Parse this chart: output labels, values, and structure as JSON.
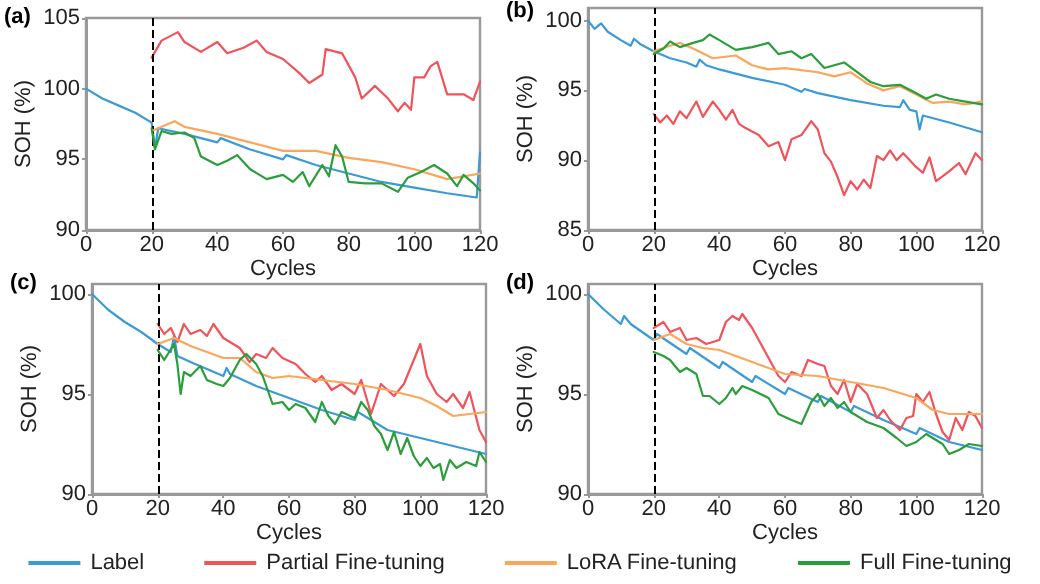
{
  "chart_data": [
    {
      "type": "line",
      "annotations": [
        "(a)"
      ],
      "xlabel": "Cycles",
      "ylabel": "SOH (%)",
      "xlim": [
        0,
        120
      ],
      "xticks": [
        0,
        20,
        40,
        60,
        80,
        100,
        120
      ],
      "ylim": [
        90,
        105
      ],
      "yticks": [
        90,
        95,
        100,
        105
      ],
      "grid": false,
      "legend": "bottom",
      "marker": "none",
      "line_style": "solid",
      "ref_lines": [
        {
          "axis": "x",
          "value": 20,
          "color": "#000000",
          "line_style": "dashed"
        }
      ],
      "series": [
        {
          "name": "Label",
          "color": "#3c9ad6",
          "x": [
            0,
            5,
            10,
            15,
            20,
            21,
            22,
            30,
            40,
            41,
            50,
            60,
            61,
            70,
            80,
            90,
            100,
            110,
            119,
            120
          ],
          "values": [
            100,
            99.3,
            98.8,
            98.3,
            97.6,
            95.8,
            97.2,
            96.8,
            96.2,
            96.5,
            95.7,
            95.0,
            95.3,
            94.6,
            94.0,
            93.4,
            93.0,
            92.6,
            92.3,
            95.5
          ]
        },
        {
          "name": "Partial Fine-tuning",
          "color": "#f0535a",
          "x": [
            20,
            23,
            28,
            30,
            35,
            40,
            43,
            48,
            52,
            55,
            60,
            65,
            68,
            72,
            73,
            78,
            82,
            84,
            88,
            92,
            95,
            97,
            99,
            100,
            103,
            105,
            107,
            110,
            115,
            118,
            120
          ],
          "values": [
            102.2,
            103.4,
            104.0,
            103.3,
            102.6,
            103.3,
            102.5,
            102.9,
            103.4,
            102.6,
            102.1,
            101.1,
            100.4,
            101.0,
            102.8,
            102.5,
            100.8,
            99.3,
            100.2,
            99.3,
            98.4,
            99.0,
            98.5,
            100.8,
            100.8,
            101.6,
            101.9,
            99.6,
            99.6,
            99.2,
            100.5
          ]
        },
        {
          "name": "LoRA Fine-tuning",
          "color": "#fba65a",
          "x": [
            20,
            25,
            27,
            30,
            40,
            50,
            60,
            70,
            80,
            90,
            100,
            110,
            115,
            120
          ],
          "values": [
            97.0,
            97.5,
            97.7,
            97.3,
            96.8,
            96.2,
            95.6,
            95.6,
            95.1,
            94.8,
            94.3,
            93.6,
            93.8,
            94.0
          ]
        },
        {
          "name": "Full Fine-tuning",
          "color": "#2a9e3a",
          "x": [
            20,
            21,
            23,
            26,
            30,
            33,
            35,
            40,
            43,
            46,
            50,
            55,
            60,
            63,
            66,
            68,
            72,
            74,
            76,
            78,
            80,
            85,
            90,
            95,
            98,
            102,
            106,
            110,
            113,
            115,
            118,
            120
          ],
          "values": [
            97.2,
            95.7,
            97.0,
            96.8,
            96.9,
            96.5,
            95.2,
            94.6,
            94.9,
            95.3,
            94.3,
            93.6,
            93.9,
            93.4,
            94.1,
            93.1,
            94.6,
            93.8,
            96.0,
            95.2,
            93.4,
            93.3,
            93.3,
            92.7,
            93.7,
            94.1,
            94.6,
            94.0,
            93.1,
            93.9,
            93.3,
            92.8
          ]
        }
      ]
    },
    {
      "type": "line",
      "annotations": [
        "(b)"
      ],
      "xlabel": "Cycles",
      "ylabel": "SOH (%)",
      "xlim": [
        0,
        120
      ],
      "xticks": [
        0,
        20,
        40,
        60,
        80,
        100,
        120
      ],
      "ylim": [
        85,
        100.9
      ],
      "yticks": [
        85,
        90,
        95,
        100
      ],
      "grid": false,
      "marker": "none",
      "line_style": "solid",
      "ref_lines": [
        {
          "axis": "x",
          "value": 20,
          "color": "#000000",
          "line_style": "dashed"
        }
      ],
      "series": [
        {
          "color": "#3c9ad6",
          "x": [
            0,
            2,
            4,
            6,
            10,
            13,
            14,
            16,
            20,
            25,
            30,
            33,
            34,
            36,
            40,
            50,
            60,
            65,
            66,
            70,
            80,
            90,
            95,
            96,
            98,
            100,
            101,
            102,
            110,
            120
          ],
          "values": [
            100.0,
            99.4,
            99.8,
            99.2,
            98.6,
            98.2,
            98.7,
            98.3,
            97.8,
            97.3,
            97.0,
            96.7,
            97.2,
            96.8,
            96.5,
            95.9,
            95.4,
            94.9,
            95.1,
            94.8,
            94.3,
            93.9,
            93.8,
            94.3,
            93.6,
            93.5,
            92.2,
            93.2,
            92.7,
            92.0
          ]
        },
        {
          "color": "#f0535a",
          "x": [
            20,
            22,
            24,
            26,
            28,
            30,
            33,
            35,
            38,
            40,
            42,
            44,
            46,
            48,
            52,
            55,
            58,
            60,
            62,
            65,
            68,
            70,
            72,
            74,
            76,
            78,
            80,
            82,
            84,
            86,
            88,
            90,
            92,
            94,
            96,
            100,
            102,
            104,
            106,
            110,
            113,
            115,
            118,
            120
          ],
          "values": [
            93.3,
            92.7,
            93.2,
            92.6,
            93.5,
            93.0,
            94.2,
            93.1,
            94.2,
            93.6,
            92.9,
            93.6,
            92.6,
            92.3,
            91.8,
            91.0,
            91.3,
            90.0,
            91.5,
            91.8,
            92.8,
            92.2,
            90.5,
            89.9,
            88.8,
            87.5,
            88.5,
            87.9,
            88.6,
            88.0,
            90.3,
            90.0,
            90.7,
            90.0,
            90.5,
            89.5,
            89.1,
            90.2,
            88.5,
            89.2,
            89.8,
            89.0,
            90.5,
            90.0
          ]
        },
        {
          "color": "#fba65a",
          "x": [
            20,
            25,
            28,
            32,
            38,
            45,
            50,
            55,
            60,
            70,
            75,
            80,
            85,
            90,
            95,
            100,
            105,
            110,
            115,
            120
          ],
          "values": [
            97.8,
            98.2,
            98.4,
            98.0,
            97.3,
            97.5,
            96.8,
            96.5,
            96.6,
            96.3,
            96.0,
            96.3,
            95.5,
            95.0,
            95.3,
            94.7,
            94.1,
            94.2,
            94.0,
            94.2
          ]
        },
        {
          "color": "#2a9e3a",
          "x": [
            20,
            23,
            25,
            28,
            32,
            35,
            37,
            40,
            45,
            50,
            55,
            58,
            62,
            65,
            68,
            72,
            78,
            82,
            86,
            90,
            95,
            100,
            103,
            106,
            110,
            115,
            120
          ],
          "values": [
            97.6,
            98.0,
            98.5,
            98.1,
            98.4,
            98.6,
            99.0,
            98.6,
            97.9,
            98.1,
            98.4,
            97.6,
            97.8,
            97.3,
            97.6,
            96.6,
            97.0,
            96.3,
            95.6,
            95.3,
            95.4,
            94.8,
            94.4,
            94.7,
            94.4,
            94.2,
            94.0
          ]
        }
      ]
    },
    {
      "type": "line",
      "annotations": [
        "(c)"
      ],
      "xlabel": "Cycles",
      "ylabel": "SOH (%)",
      "xlim": [
        0,
        120
      ],
      "xticks": [
        0,
        20,
        40,
        60,
        80,
        100,
        120
      ],
      "ylim": [
        90,
        100.5
      ],
      "yticks": [
        90,
        95,
        100
      ],
      "grid": false,
      "marker": "none",
      "line_style": "solid",
      "ref_lines": [
        {
          "axis": "x",
          "value": 20,
          "color": "#000000",
          "line_style": "dashed"
        }
      ],
      "series": [
        {
          "color": "#3c9ad6",
          "x": [
            0,
            5,
            10,
            15,
            20,
            24,
            25,
            26,
            30,
            40,
            41,
            42,
            50,
            60,
            70,
            80,
            81,
            90,
            100,
            110,
            120
          ],
          "values": [
            100,
            99.2,
            98.6,
            98.1,
            97.5,
            97.1,
            97.9,
            96.9,
            96.6,
            95.9,
            96.3,
            96.0,
            95.4,
            94.8,
            94.2,
            93.7,
            94.1,
            93.2,
            92.8,
            92.4,
            92.0
          ]
        },
        {
          "color": "#f0535a",
          "x": [
            20,
            22,
            24,
            26,
            28,
            30,
            33,
            35,
            37,
            40,
            45,
            48,
            50,
            53,
            55,
            58,
            62,
            65,
            68,
            70,
            73,
            76,
            80,
            82,
            85,
            88,
            92,
            95,
            98,
            100,
            102,
            105,
            108,
            110,
            113,
            115,
            118,
            120
          ],
          "values": [
            98.5,
            98.0,
            98.3,
            97.6,
            98.5,
            98.0,
            98.2,
            97.9,
            98.5,
            97.8,
            97.3,
            96.6,
            97.0,
            96.8,
            97.3,
            96.8,
            96.5,
            96.0,
            95.6,
            95.9,
            95.2,
            95.5,
            95.0,
            95.7,
            94.0,
            95.5,
            94.9,
            95.5,
            96.7,
            97.5,
            95.9,
            95.0,
            94.6,
            95.0,
            94.3,
            95.1,
            93.2,
            92.6
          ]
        },
        {
          "color": "#fba65a",
          "x": [
            20,
            25,
            30,
            40,
            45,
            50,
            55,
            60,
            70,
            80,
            90,
            100,
            105,
            110,
            115,
            120
          ],
          "values": [
            97.5,
            97.8,
            97.4,
            96.8,
            96.8,
            96.1,
            95.8,
            95.9,
            95.7,
            95.5,
            95.2,
            94.8,
            94.4,
            93.9,
            94.0,
            94.1
          ]
        },
        {
          "color": "#2a9e3a",
          "x": [
            20,
            22,
            25,
            26,
            27,
            28,
            30,
            33,
            35,
            38,
            40,
            42,
            45,
            47,
            50,
            52,
            55,
            58,
            60,
            62,
            65,
            68,
            70,
            72,
            74,
            76,
            80,
            82,
            84,
            86,
            88,
            90,
            92,
            94,
            96,
            98,
            100,
            102,
            104,
            106,
            107,
            109,
            111,
            114,
            117,
            118,
            120
          ],
          "values": [
            97.2,
            96.7,
            97.5,
            96.5,
            95.0,
            96.1,
            95.9,
            96.4,
            95.7,
            95.5,
            95.4,
            95.8,
            96.7,
            97.0,
            96.5,
            95.9,
            94.5,
            94.6,
            94.2,
            94.5,
            94.3,
            93.6,
            94.6,
            93.9,
            93.5,
            94.1,
            93.8,
            94.6,
            94.2,
            93.4,
            93.0,
            92.2,
            93.1,
            92.0,
            92.8,
            91.9,
            91.4,
            91.8,
            91.3,
            91.5,
            90.7,
            91.7,
            91.3,
            91.6,
            91.4,
            92.1,
            91.6
          ]
        }
      ]
    },
    {
      "type": "line",
      "annotations": [
        "(d)"
      ],
      "xlabel": "Cycles",
      "ylabel": "SOH (%)",
      "xlim": [
        0,
        120
      ],
      "xticks": [
        0,
        20,
        40,
        60,
        80,
        100,
        120
      ],
      "ylim": [
        90,
        100.5
      ],
      "yticks": [
        90,
        95,
        100
      ],
      "grid": false,
      "marker": "none",
      "line_style": "solid",
      "ref_lines": [
        {
          "axis": "x",
          "value": 20,
          "color": "#000000",
          "line_style": "dashed"
        }
      ],
      "series": [
        {
          "color": "#3c9ad6",
          "x": [
            0,
            5,
            10,
            11,
            13,
            20,
            21,
            30,
            31,
            40,
            41,
            50,
            51,
            60,
            61,
            70,
            71,
            80,
            81,
            90,
            100,
            101,
            110,
            120
          ],
          "values": [
            100,
            99.2,
            98.5,
            98.9,
            98.5,
            97.7,
            98.0,
            97.0,
            97.3,
            96.3,
            96.6,
            95.6,
            95.9,
            95.0,
            95.3,
            94.6,
            94.9,
            94.1,
            94.4,
            93.7,
            93.0,
            93.3,
            92.6,
            92.2
          ]
        },
        {
          "color": "#f0535a",
          "x": [
            20,
            23,
            25,
            28,
            30,
            33,
            36,
            40,
            42,
            44,
            46,
            47,
            50,
            52,
            55,
            58,
            60,
            62,
            65,
            67,
            70,
            72,
            74,
            76,
            78,
            80,
            82,
            85,
            88,
            90,
            92,
            95,
            97,
            99,
            100,
            102,
            104,
            106,
            108,
            110,
            112,
            114,
            116,
            118,
            120
          ],
          "values": [
            98.3,
            98.6,
            98.1,
            98.3,
            97.7,
            97.8,
            97.5,
            97.7,
            98.6,
            98.9,
            98.7,
            99.0,
            98.3,
            97.7,
            96.8,
            95.9,
            95.6,
            96.1,
            95.9,
            96.7,
            96.5,
            96.4,
            95.4,
            95.0,
            95.7,
            94.6,
            95.5,
            95.0,
            93.8,
            94.2,
            93.7,
            93.2,
            93.8,
            93.9,
            95.0,
            94.6,
            95.1,
            94.0,
            93.1,
            92.7,
            93.8,
            93.2,
            94.1,
            93.9,
            93.3
          ]
        },
        {
          "color": "#fba65a",
          "x": [
            20,
            25,
            30,
            35,
            40,
            50,
            60,
            70,
            80,
            90,
            100,
            105,
            110,
            120
          ],
          "values": [
            97.7,
            98.0,
            97.5,
            97.3,
            97.2,
            96.6,
            96.0,
            95.9,
            95.6,
            95.3,
            94.8,
            94.2,
            94.0,
            94.0
          ]
        },
        {
          "color": "#2a9e3a",
          "x": [
            20,
            23,
            25,
            28,
            30,
            33,
            35,
            37,
            40,
            42,
            44,
            45,
            47,
            50,
            55,
            58,
            62,
            65,
            68,
            70,
            72,
            74,
            76,
            78,
            80,
            85,
            90,
            94,
            97,
            100,
            103,
            106,
            108,
            110,
            113,
            116,
            120
          ],
          "values": [
            97.1,
            96.9,
            96.7,
            96.1,
            96.3,
            96.0,
            94.9,
            94.9,
            94.5,
            94.8,
            95.3,
            95.0,
            95.4,
            95.2,
            94.8,
            94.0,
            93.7,
            93.5,
            94.6,
            95.0,
            94.4,
            94.8,
            94.3,
            94.6,
            94.1,
            93.6,
            93.3,
            92.8,
            92.4,
            92.6,
            93.0,
            92.7,
            92.5,
            92.0,
            92.2,
            92.5,
            92.4
          ]
        }
      ]
    }
  ]
}
